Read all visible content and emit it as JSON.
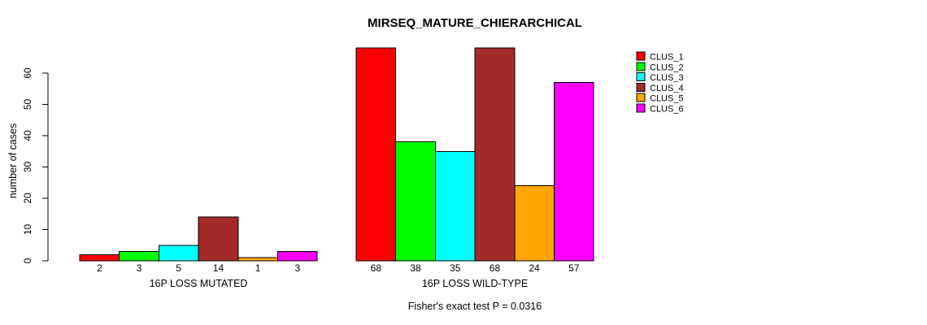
{
  "chart_data": {
    "type": "bar",
    "title": "MIRSEQ_MATURE_CHIERARCHICAL",
    "ylabel": "number of cases",
    "xlabel": "",
    "ylim": [
      0,
      60
    ],
    "yticks": [
      0,
      10,
      20,
      30,
      40,
      50,
      60
    ],
    "grid": false,
    "legend_position": "top-right",
    "bar_border_color": "#000000",
    "series": [
      {
        "name": "CLUS_1",
        "color": "#FF0000"
      },
      {
        "name": "CLUS_2",
        "color": "#00FF00"
      },
      {
        "name": "CLUS_3",
        "color": "#00FFFF"
      },
      {
        "name": "CLUS_4",
        "color": "#A52A2A"
      },
      {
        "name": "CLUS_5",
        "color": "#FFA500"
      },
      {
        "name": "CLUS_6",
        "color": "#FF00FF"
      }
    ],
    "groups": [
      {
        "label": "16P LOSS MUTATED",
        "values": [
          2,
          3,
          5,
          14,
          1,
          3
        ]
      },
      {
        "label": "16P LOSS WILD-TYPE",
        "values": [
          68,
          38,
          35,
          68,
          24,
          57
        ]
      }
    ],
    "footnote": "Fisher's exact test P = 0.0316"
  }
}
